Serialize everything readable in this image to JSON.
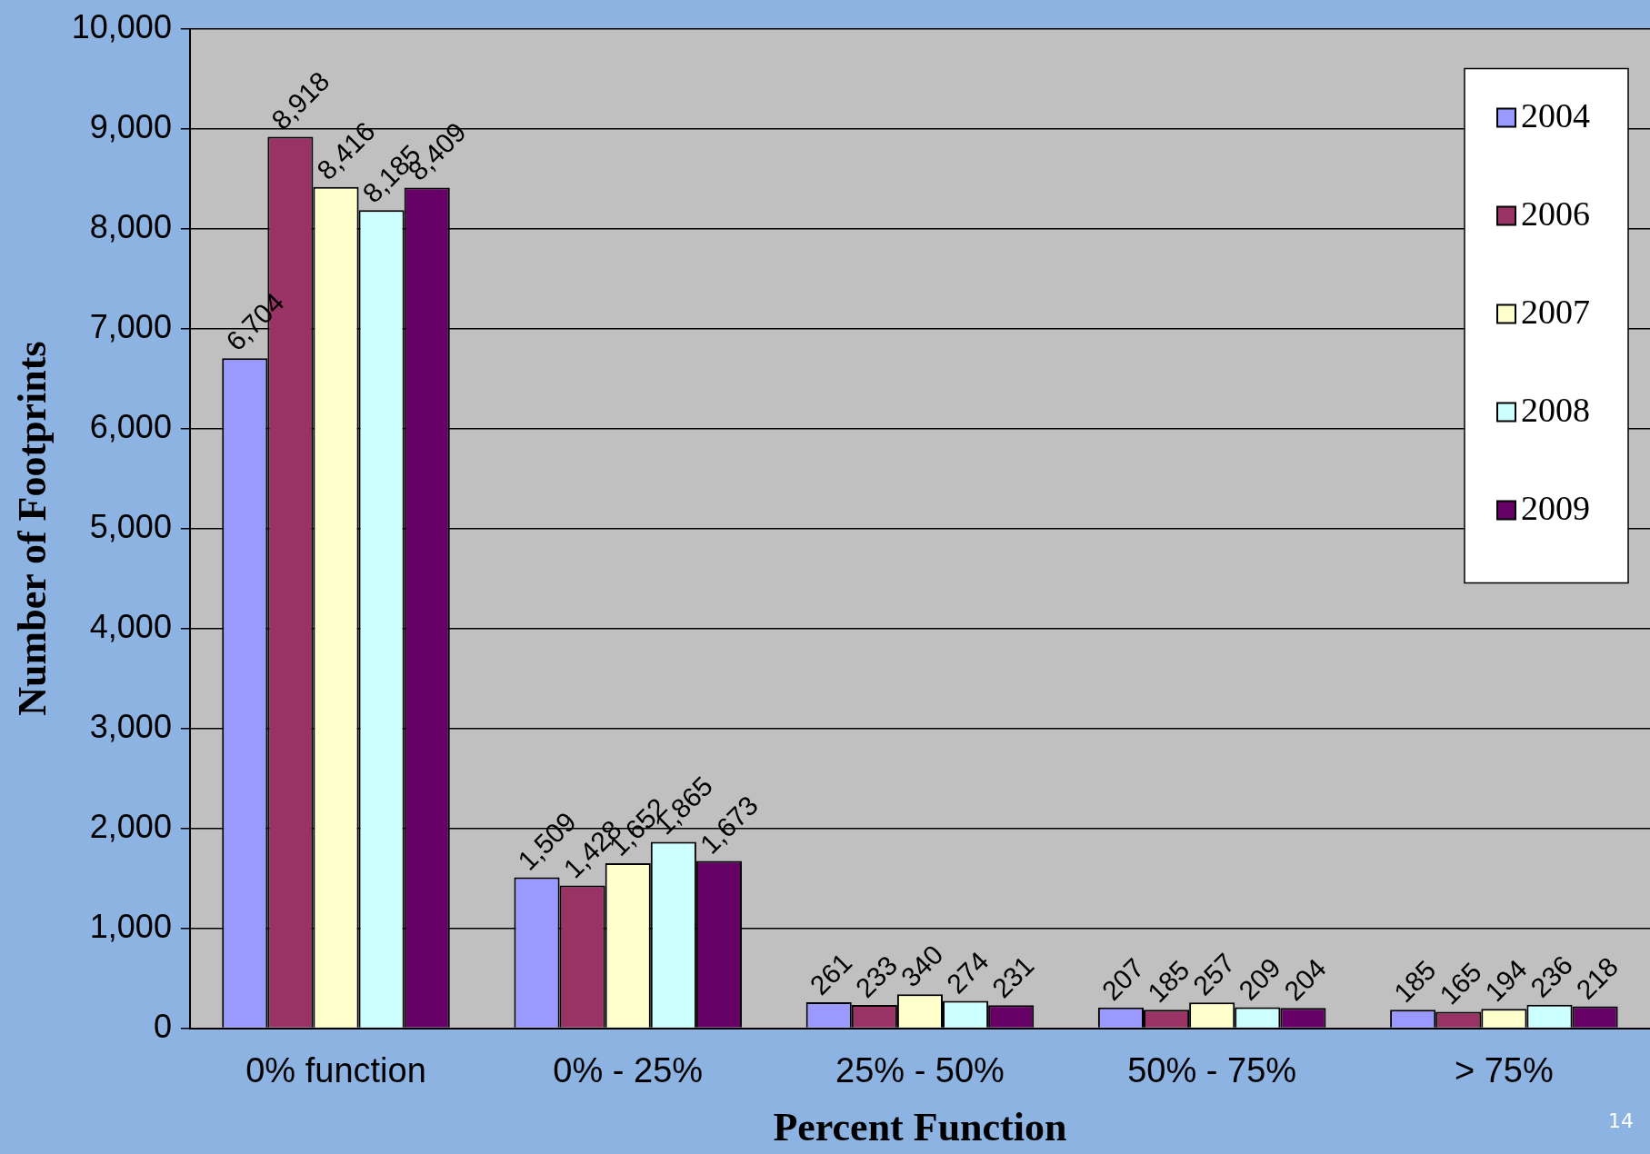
{
  "chart_data": {
    "type": "bar",
    "xlabel": "Percent Function",
    "ylabel": "Number of Footprints",
    "categories": [
      "0% function",
      "0% - 25%",
      "25% - 50%",
      "50% - 75%",
      "> 75%"
    ],
    "series": [
      {
        "name": "2004",
        "color": "#9999ff",
        "values": [
          6704,
          1509,
          261,
          207,
          185
        ],
        "value_labels": [
          "6,704",
          "1,509",
          "261",
          "207",
          "185"
        ]
      },
      {
        "name": "2006",
        "color": "#993366",
        "values": [
          8918,
          1428,
          233,
          185,
          165
        ],
        "value_labels": [
          "8,918",
          "1,428",
          "233",
          "185",
          "165"
        ]
      },
      {
        "name": "2007",
        "color": "#ffffcc",
        "values": [
          8416,
          1652,
          340,
          257,
          194
        ],
        "value_labels": [
          "8,416",
          "1,652",
          "340",
          "257",
          "194"
        ]
      },
      {
        "name": "2008",
        "color": "#ccffff",
        "values": [
          8185,
          1865,
          274,
          209,
          236
        ],
        "value_labels": [
          "8,185",
          "1,865",
          "274",
          "209",
          "236"
        ]
      },
      {
        "name": "2009",
        "color": "#660066",
        "values": [
          8409,
          1673,
          231,
          204,
          218
        ],
        "value_labels": [
          "8,409",
          "1,673",
          "231",
          "204",
          "218"
        ]
      }
    ],
    "ylim": [
      0,
      10000
    ],
    "yticks": [
      0,
      {
        "value": 1000,
        "label": "1,000"
      },
      {
        "value": 2000,
        "label": "2,000"
      },
      {
        "value": 3000,
        "label": "3,000"
      },
      {
        "value": 4000,
        "label": "4,000"
      },
      {
        "value": 5000,
        "label": "5,000"
      },
      {
        "value": 6000,
        "label": "6,000"
      },
      {
        "value": 7000,
        "label": "7,000"
      },
      {
        "value": 8000,
        "label": "8,000"
      },
      {
        "value": 9000,
        "label": "9,000"
      },
      {
        "value": 10000,
        "label": "10,000"
      }
    ],
    "grid": "y",
    "legend": "top right",
    "annotations": [
      "14"
    ]
  }
}
